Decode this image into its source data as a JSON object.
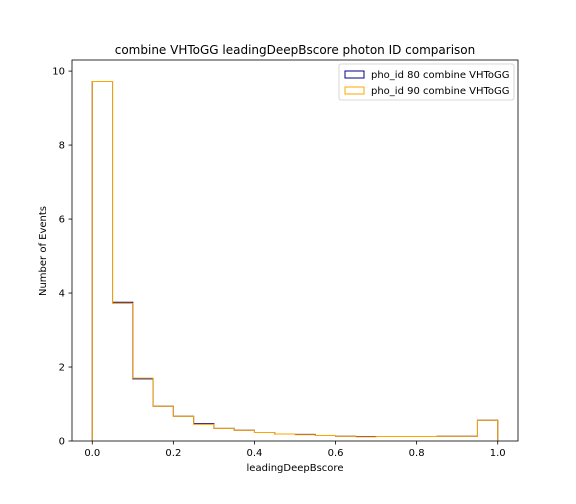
{
  "chart_data": {
    "type": "histogram",
    "title": "combine VHToGG leadingDeepBscore photon ID comparison",
    "xlabel": "leadingDeepBscore",
    "ylabel": "Number of Events",
    "xlim": [
      -0.05,
      1.05
    ],
    "ylim": [
      0,
      10.3
    ],
    "xticks": [
      0.0,
      0.2,
      0.4,
      0.6,
      0.8,
      1.0
    ],
    "xtick_labels": [
      "0.0",
      "0.2",
      "0.4",
      "0.6",
      "0.8",
      "1.0"
    ],
    "yticks": [
      0,
      2,
      4,
      6,
      8,
      10
    ],
    "ytick_labels": [
      "0",
      "2",
      "4",
      "6",
      "8",
      "10"
    ],
    "bin_edges": [
      0.0,
      0.05,
      0.1,
      0.15,
      0.2,
      0.25,
      0.3,
      0.35,
      0.4,
      0.45,
      0.5,
      0.55,
      0.6,
      0.65,
      0.7,
      0.75,
      0.8,
      0.85,
      0.9,
      0.95,
      1.0
    ],
    "grid": false,
    "legend_position": "top-right",
    "series": [
      {
        "name": "pho_id 80 combine VHToGG",
        "color": "#00008b",
        "values": [
          9.72,
          3.75,
          1.68,
          0.94,
          0.67,
          0.47,
          0.34,
          0.29,
          0.23,
          0.19,
          0.18,
          0.15,
          0.13,
          0.12,
          0.12,
          0.12,
          0.12,
          0.13,
          0.13,
          0.56
        ]
      },
      {
        "name": "pho_id 90 combine VHToGG",
        "color": "#ffa500",
        "values": [
          9.72,
          3.72,
          1.7,
          0.94,
          0.67,
          0.45,
          0.34,
          0.29,
          0.23,
          0.19,
          0.17,
          0.15,
          0.13,
          0.11,
          0.12,
          0.12,
          0.12,
          0.13,
          0.13,
          0.56
        ]
      }
    ]
  }
}
